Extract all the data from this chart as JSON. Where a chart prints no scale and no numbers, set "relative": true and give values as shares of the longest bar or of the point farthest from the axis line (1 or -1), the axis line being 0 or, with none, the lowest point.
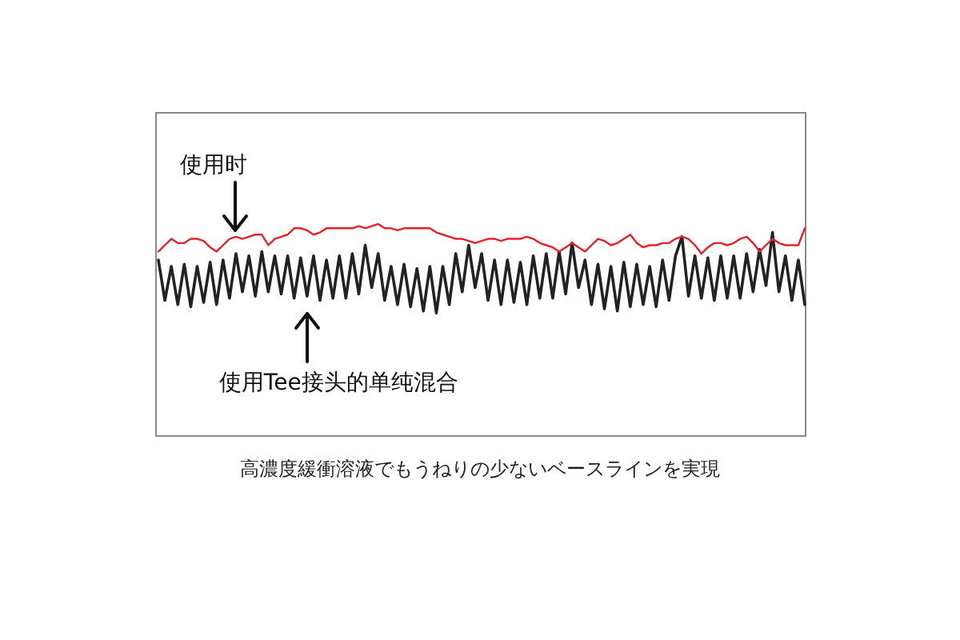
{
  "chart_data": {
    "type": "line",
    "relative": true,
    "legend": false,
    "grid": false,
    "marker": "none",
    "categories": [
      null,
      null,
      null,
      null,
      null,
      null,
      null,
      null,
      null,
      null,
      null,
      null,
      null,
      null,
      null,
      null,
      null,
      null,
      null,
      null,
      null,
      null,
      null,
      null,
      null,
      null,
      null,
      null,
      null,
      null,
      null,
      null,
      null,
      null,
      null,
      null,
      null,
      null,
      null,
      null,
      null,
      null,
      null,
      null,
      null,
      null,
      null,
      null,
      null,
      null,
      null,
      null,
      null,
      null,
      null,
      null,
      null,
      null,
      null,
      null,
      null,
      null,
      null,
      null,
      null,
      null,
      null,
      null,
      null,
      null,
      null,
      null,
      null,
      null,
      null,
      null,
      null,
      null,
      null,
      null,
      null,
      null,
      null,
      null,
      null,
      null,
      null,
      null,
      null,
      null,
      null,
      null,
      null,
      null,
      null,
      null,
      null,
      null,
      null,
      null,
      null
    ],
    "series": [
      {
        "name": "使用时",
        "color": "#e8202a",
        "values": [
          0.87,
          0.9,
          0.93,
          0.91,
          0.91,
          0.93,
          0.93,
          0.92,
          0.89,
          0.87,
          0.9,
          0.93,
          0.94,
          0.93,
          0.94,
          0.95,
          0.95,
          0.9,
          0.93,
          0.94,
          0.95,
          0.98,
          0.98,
          0.97,
          0.95,
          0.96,
          0.98,
          0.98,
          0.98,
          0.98,
          0.98,
          0.99,
          0.98,
          0.99,
          1.0,
          0.98,
          0.98,
          0.97,
          0.98,
          0.98,
          0.98,
          0.98,
          0.98,
          0.96,
          0.95,
          0.94,
          0.93,
          0.93,
          0.92,
          0.91,
          0.92,
          0.93,
          0.93,
          0.92,
          0.93,
          0.93,
          0.93,
          0.94,
          0.93,
          0.91,
          0.9,
          0.89,
          0.87,
          0.89,
          0.91,
          0.89,
          0.87,
          0.9,
          0.93,
          0.92,
          0.9,
          0.91,
          0.93,
          0.95,
          0.91,
          0.89,
          0.9,
          0.9,
          0.91,
          0.91,
          0.93,
          0.94,
          0.93,
          0.9,
          0.86,
          0.89,
          0.91,
          0.91,
          0.9,
          0.91,
          0.93,
          0.94,
          0.91,
          0.87,
          0.9,
          0.93,
          0.91,
          0.9,
          0.9,
          0.9,
          0.98
        ]
      },
      {
        "name": "使用Tee接头的单纯混合",
        "color": "#222222",
        "values": [
          0.83,
          0.64,
          0.8,
          0.62,
          0.81,
          0.61,
          0.8,
          0.63,
          0.82,
          0.62,
          0.83,
          0.65,
          0.86,
          0.68,
          0.85,
          0.66,
          0.87,
          0.68,
          0.85,
          0.67,
          0.85,
          0.65,
          0.84,
          0.66,
          0.85,
          0.64,
          0.83,
          0.65,
          0.85,
          0.65,
          0.86,
          0.67,
          0.9,
          0.7,
          0.86,
          0.64,
          0.8,
          0.62,
          0.81,
          0.61,
          0.79,
          0.59,
          0.8,
          0.58,
          0.8,
          0.62,
          0.86,
          0.68,
          0.9,
          0.7,
          0.86,
          0.64,
          0.83,
          0.62,
          0.83,
          0.63,
          0.82,
          0.62,
          0.85,
          0.65,
          0.86,
          0.65,
          0.87,
          0.67,
          0.91,
          0.7,
          0.83,
          0.62,
          0.81,
          0.6,
          0.8,
          0.59,
          0.82,
          0.61,
          0.81,
          0.62,
          0.8,
          0.61,
          0.83,
          0.64,
          0.85,
          0.94,
          0.66,
          0.85,
          0.65,
          0.84,
          0.64,
          0.85,
          0.65,
          0.85,
          0.65,
          0.86,
          0.68,
          0.88,
          0.71,
          0.96,
          0.68,
          0.85,
          0.64,
          0.83,
          0.62
        ]
      }
    ],
    "annotations": [
      "高濃度緩衝溶液でもうねりの少ないベースラインを実現"
    ]
  }
}
